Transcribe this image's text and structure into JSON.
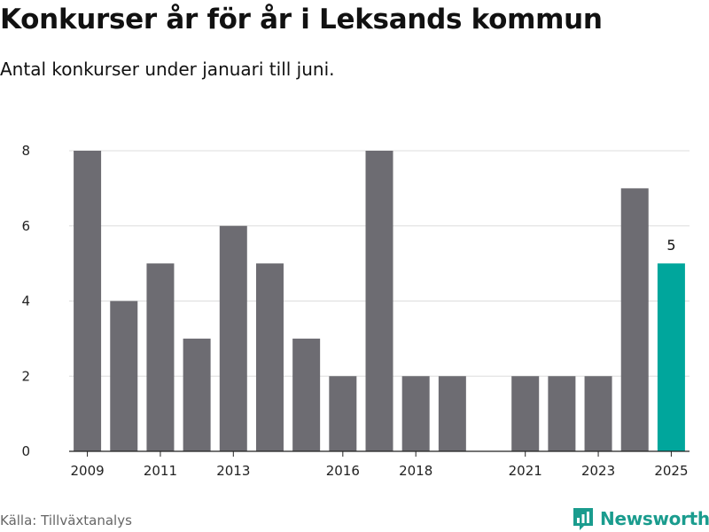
{
  "header": {
    "title": "Konkurser år för år i Leksands kommun",
    "subtitle": "Antal konkurser under januari till juni."
  },
  "footer": {
    "source": "Källa: Tillväxtanalys",
    "brand": "Newsworthy"
  },
  "colors": {
    "bar": "#6d6c72",
    "highlight": "#00a69c",
    "grid": "#dddddd",
    "axis": "#222222",
    "brand": "#1a9c8e"
  },
  "icons": {
    "brand_logo": "newsworthy-logo-icon"
  },
  "chart_data": {
    "type": "bar",
    "title": "Konkurser år för år i Leksands kommun",
    "subtitle": "Antal konkurser under januari till juni.",
    "xlabel": "",
    "ylabel": "",
    "categories": [
      2009,
      2010,
      2011,
      2012,
      2013,
      2014,
      2015,
      2016,
      2017,
      2018,
      2019,
      2020,
      2021,
      2022,
      2023,
      2024,
      2025
    ],
    "values": [
      8,
      4,
      5,
      3,
      6,
      5,
      3,
      2,
      8,
      2,
      2,
      0,
      2,
      2,
      2,
      7,
      5
    ],
    "highlight_category": 2025,
    "data_labels": [
      {
        "category": 2025,
        "text": "5"
      }
    ],
    "xticks": [
      "2009",
      "2011",
      "2013",
      "2016",
      "2018",
      "2021",
      "2023",
      "2025"
    ],
    "yticks": [
      "0",
      "2",
      "4",
      "6",
      "8"
    ],
    "ylim": [
      0,
      8
    ],
    "grid": "horizontal",
    "legend": "none"
  }
}
